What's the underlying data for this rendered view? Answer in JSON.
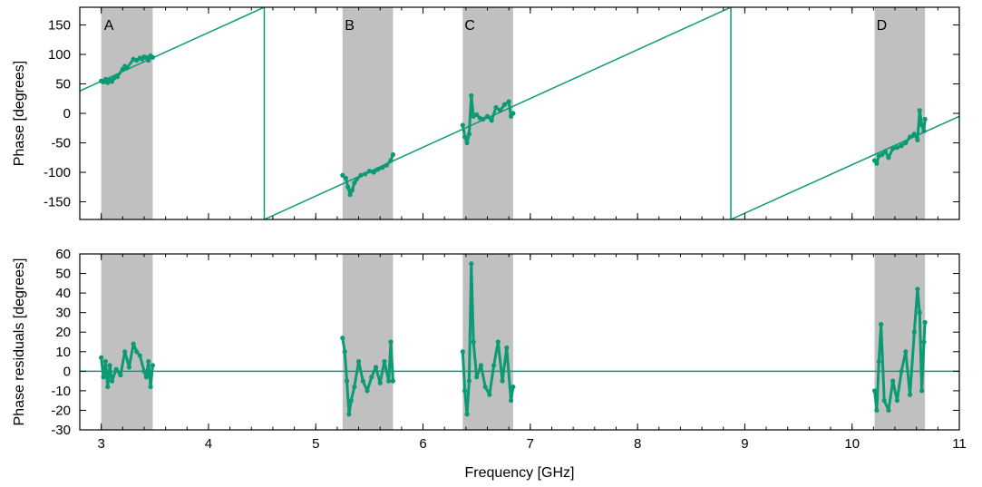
{
  "colors": {
    "series": "#0b9a74",
    "band": "#c0c0c0",
    "frame": "#000000"
  },
  "chart_data": [
    {
      "type": "scatter",
      "name": "phase",
      "xlabel": "",
      "ylabel": "Phase [degrees]",
      "xlim": [
        2.8,
        11.0
      ],
      "ylim": [
        -180,
        180
      ],
      "xticks": [
        3,
        4,
        5,
        6,
        7,
        8,
        9,
        10,
        11
      ],
      "yticks": [
        -150,
        -100,
        -50,
        0,
        50,
        100,
        150
      ],
      "ytick_labels": [
        "-150",
        "-100",
        "-50",
        "0",
        "50",
        "100",
        "150"
      ],
      "show_xtick_labels": false,
      "bands": [
        {
          "label": "A",
          "x0": 3.0,
          "x1": 3.48
        },
        {
          "label": "B",
          "x0": 5.25,
          "x1": 5.72
        },
        {
          "label": "C",
          "x0": 6.37,
          "x1": 6.84
        },
        {
          "label": "D",
          "x0": 10.21,
          "x1": 10.68
        }
      ],
      "fit_line": {
        "segments": [
          {
            "x": [
              2.8,
              4.52
            ],
            "y": [
              38,
              180
            ]
          },
          {
            "x": [
              4.52,
              4.52
            ],
            "y": [
              180,
              -180
            ]
          },
          {
            "x": [
              4.52,
              8.87
            ],
            "y": [
              -180,
              180
            ]
          },
          {
            "x": [
              8.87,
              8.87
            ],
            "y": [
              180,
              -180
            ]
          },
          {
            "x": [
              8.87,
              11.0
            ],
            "y": [
              -180,
              -5
            ]
          }
        ]
      },
      "series": [
        {
          "x": [
            3.0,
            3.02,
            3.04,
            3.06,
            3.08,
            3.1,
            3.12,
            3.15,
            3.2,
            3.22,
            3.24,
            3.3,
            3.33,
            3.36,
            3.38,
            3.4,
            3.42,
            3.44,
            3.46,
            3.48
          ],
          "y": [
            55,
            53,
            58,
            52,
            57,
            54,
            60,
            62,
            75,
            80,
            77,
            92,
            90,
            94,
            92,
            96,
            95,
            90,
            98,
            95
          ]
        },
        {
          "x": [
            5.25,
            5.28,
            5.3,
            5.32,
            5.34,
            5.36,
            5.38,
            5.42,
            5.46,
            5.5,
            5.54,
            5.58,
            5.62,
            5.66,
            5.7,
            5.72
          ],
          "y": [
            -105,
            -110,
            -125,
            -138,
            -130,
            -118,
            -112,
            -105,
            -103,
            -98,
            -100,
            -95,
            -92,
            -88,
            -80,
            -70
          ]
        },
        {
          "x": [
            6.37,
            6.39,
            6.41,
            6.43,
            6.45,
            6.47,
            6.5,
            6.53,
            6.56,
            6.6,
            6.64,
            6.68,
            6.72,
            6.76,
            6.8,
            6.82,
            6.84
          ],
          "y": [
            -20,
            -40,
            -50,
            -35,
            30,
            -5,
            -2,
            -8,
            -10,
            -5,
            -12,
            10,
            5,
            15,
            20,
            -5,
            0
          ]
        },
        {
          "x": [
            10.21,
            10.23,
            10.25,
            10.28,
            10.31,
            10.34,
            10.38,
            10.42,
            10.46,
            10.5,
            10.54,
            10.58,
            10.61,
            10.63,
            10.65,
            10.67,
            10.68
          ],
          "y": [
            -80,
            -85,
            -72,
            -70,
            -65,
            -75,
            -60,
            -58,
            -55,
            -50,
            -40,
            -35,
            -45,
            5,
            -20,
            -30,
            -10
          ]
        }
      ]
    },
    {
      "type": "scatter",
      "name": "residuals",
      "xlabel": "Frequency [GHz]",
      "ylabel": "Phase residuals [degrees]",
      "xlim": [
        2.8,
        11.0
      ],
      "ylim": [
        -30,
        60
      ],
      "xticks": [
        3,
        4,
        5,
        6,
        7,
        8,
        9,
        10,
        11
      ],
      "xtick_labels": [
        "3",
        "4",
        "5",
        "6",
        "7",
        "8",
        "9",
        "10",
        "11"
      ],
      "yticks": [
        -30,
        -20,
        -10,
        0,
        10,
        20,
        30,
        40,
        50,
        60
      ],
      "ytick_labels": [
        "-30",
        "-20",
        "-10",
        "0",
        "10",
        "20",
        "30",
        "40",
        "50",
        "60"
      ],
      "show_xtick_labels": true,
      "bands": [
        {
          "label": "",
          "x0": 3.0,
          "x1": 3.48
        },
        {
          "label": "",
          "x0": 5.25,
          "x1": 5.72
        },
        {
          "label": "",
          "x0": 6.37,
          "x1": 6.84
        },
        {
          "label": "",
          "x0": 10.21,
          "x1": 10.68
        }
      ],
      "fit_line": {
        "segments": [
          {
            "x": [
              2.8,
              11.0
            ],
            "y": [
              0,
              0
            ]
          }
        ]
      },
      "series": [
        {
          "x": [
            3.0,
            3.02,
            3.04,
            3.06,
            3.08,
            3.1,
            3.14,
            3.18,
            3.22,
            3.26,
            3.3,
            3.33,
            3.36,
            3.4,
            3.42,
            3.44,
            3.46,
            3.48
          ],
          "y": [
            7,
            -3,
            5,
            -8,
            3,
            -5,
            1,
            -2,
            10,
            2,
            14,
            10,
            8,
            0,
            -3,
            5,
            -8,
            3
          ]
        },
        {
          "x": [
            5.25,
            5.27,
            5.29,
            5.31,
            5.33,
            5.36,
            5.4,
            5.44,
            5.48,
            5.52,
            5.56,
            5.6,
            5.64,
            5.68,
            5.7,
            5.72
          ],
          "y": [
            17,
            10,
            -5,
            -22,
            -15,
            -8,
            5,
            -5,
            -10,
            -3,
            2,
            -6,
            5,
            -5,
            15,
            -5
          ]
        },
        {
          "x": [
            6.37,
            6.39,
            6.41,
            6.43,
            6.45,
            6.47,
            6.5,
            6.54,
            6.58,
            6.62,
            6.66,
            6.7,
            6.74,
            6.78,
            6.82,
            6.84
          ],
          "y": [
            10,
            -10,
            -22,
            -5,
            55,
            15,
            -3,
            3,
            -8,
            -12,
            3,
            15,
            -5,
            12,
            -15,
            -8
          ]
        },
        {
          "x": [
            10.21,
            10.23,
            10.25,
            10.27,
            10.3,
            10.34,
            10.38,
            10.42,
            10.46,
            10.5,
            10.54,
            10.58,
            10.61,
            10.63,
            10.65,
            10.67,
            10.68
          ],
          "y": [
            -10,
            -20,
            5,
            24,
            -15,
            -20,
            -5,
            -15,
            0,
            10,
            -12,
            20,
            42,
            30,
            -10,
            15,
            25
          ]
        }
      ]
    }
  ]
}
